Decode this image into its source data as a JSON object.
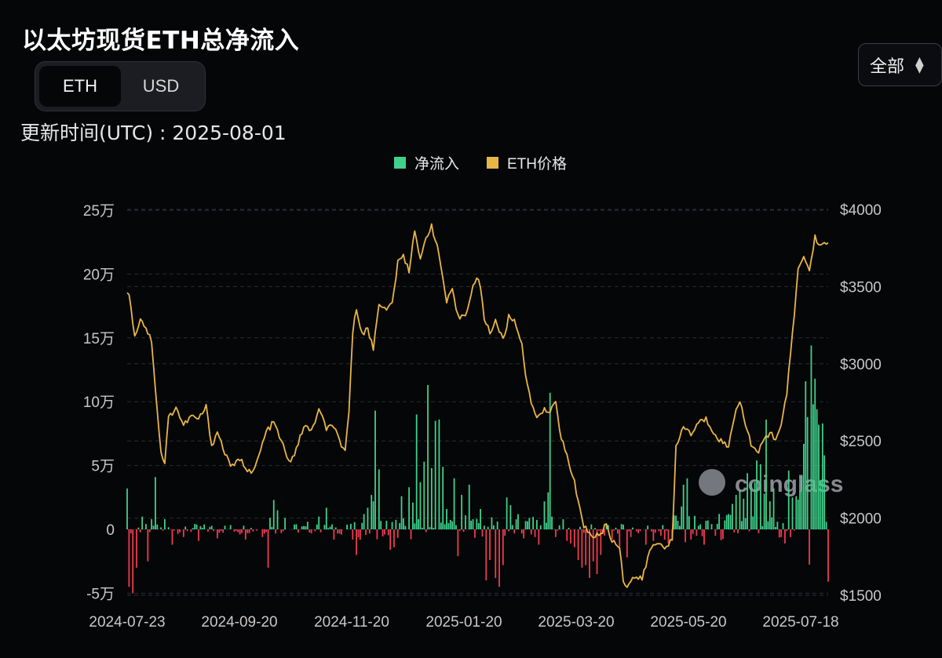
{
  "title": "以太坊现货ETH总净流入",
  "unit_toggle": {
    "options": [
      "ETH",
      "USD"
    ],
    "selected": "ETH"
  },
  "update_time": "更新时间(UTC) : 2025-08-01",
  "range_select": {
    "value": "全部",
    "icon": "chevron-up-down-icon"
  },
  "watermark": "coinglass",
  "colors": {
    "inflow": "#3fd18b",
    "outflow": "#ef3b4f",
    "price": "#e8b646",
    "background": "#050608"
  },
  "chart_data": {
    "type": "bar+line",
    "legend": [
      {
        "name": "净流入",
        "color": "#3fd18b"
      },
      {
        "name": "ETH价格",
        "color": "#e8b646"
      }
    ],
    "legend_position": "top-center",
    "grid": true,
    "x_tick_labels": [
      "2024-07-23",
      "2024-09-20",
      "2024-11-20",
      "2025-01-20",
      "2025-03-20",
      "2025-05-20",
      "2025-07-18"
    ],
    "y_left": {
      "min": -55000,
      "max": 250000,
      "ticks": [
        {
          "value": 250000,
          "label": "25万"
        },
        {
          "value": 200000,
          "label": "20万"
        },
        {
          "value": 150000,
          "label": "15万"
        },
        {
          "value": 100000,
          "label": "10万"
        },
        {
          "value": 50000,
          "label": "5万"
        },
        {
          "value": 0,
          "label": "0"
        },
        {
          "value": -50000,
          "label": "-5万"
        }
      ]
    },
    "y_right": {
      "min": 1480,
      "max": 4000,
      "ticks": [
        {
          "value": 4000,
          "label": "$4000"
        },
        {
          "value": 3500,
          "label": "$3500"
        },
        {
          "value": 3000,
          "label": "$3000"
        },
        {
          "value": 2500,
          "label": "$2500"
        },
        {
          "value": 2000,
          "label": "$2000"
        },
        {
          "value": 1500,
          "label": "$1500"
        }
      ]
    },
    "price_keypoints": [
      [
        0,
        3480
      ],
      [
        2,
        3380
      ],
      [
        4,
        3170
      ],
      [
        7,
        3300
      ],
      [
        10,
        3230
      ],
      [
        13,
        3150
      ],
      [
        16,
        2700
      ],
      [
        18,
        2420
      ],
      [
        20,
        2360
      ],
      [
        22,
        2650
      ],
      [
        26,
        2720
      ],
      [
        30,
        2600
      ],
      [
        34,
        2660
      ],
      [
        38,
        2640
      ],
      [
        42,
        2720
      ],
      [
        45,
        2470
      ],
      [
        48,
        2560
      ],
      [
        52,
        2420
      ],
      [
        56,
        2330
      ],
      [
        60,
        2380
      ],
      [
        64,
        2320
      ],
      [
        67,
        2290
      ],
      [
        70,
        2400
      ],
      [
        74,
        2560
      ],
      [
        78,
        2620
      ],
      [
        82,
        2500
      ],
      [
        86,
        2360
      ],
      [
        90,
        2440
      ],
      [
        94,
        2600
      ],
      [
        98,
        2560
      ],
      [
        102,
        2700
      ],
      [
        106,
        2580
      ],
      [
        110,
        2600
      ],
      [
        114,
        2450
      ],
      [
        116,
        2430
      ],
      [
        118,
        2700
      ],
      [
        120,
        3200
      ],
      [
        122,
        3360
      ],
      [
        125,
        3200
      ],
      [
        128,
        3220
      ],
      [
        131,
        3100
      ],
      [
        134,
        3400
      ],
      [
        138,
        3340
      ],
      [
        141,
        3400
      ],
      [
        144,
        3650
      ],
      [
        147,
        3700
      ],
      [
        150,
        3600
      ],
      [
        153,
        3880
      ],
      [
        156,
        3660
      ],
      [
        159,
        3820
      ],
      [
        162,
        3900
      ],
      [
        166,
        3700
      ],
      [
        170,
        3400
      ],
      [
        173,
        3470
      ],
      [
        176,
        3300
      ],
      [
        180,
        3320
      ],
      [
        184,
        3500
      ],
      [
        187,
        3560
      ],
      [
        190,
        3300
      ],
      [
        193,
        3200
      ],
      [
        196,
        3280
      ],
      [
        200,
        3150
      ],
      [
        203,
        3300
      ],
      [
        206,
        3280
      ],
      [
        210,
        3130
      ],
      [
        213,
        2850
      ],
      [
        216,
        2700
      ],
      [
        219,
        2650
      ],
      [
        222,
        2720
      ],
      [
        225,
        2680
      ],
      [
        228,
        2750
      ],
      [
        231,
        2520
      ],
      [
        234,
        2400
      ],
      [
        237,
        2280
      ],
      [
        240,
        2120
      ],
      [
        243,
        1950
      ],
      [
        246,
        1900
      ],
      [
        249,
        1880
      ],
      [
        252,
        1900
      ],
      [
        255,
        1960
      ],
      [
        258,
        1850
      ],
      [
        262,
        1820
      ],
      [
        264,
        1600
      ],
      [
        266,
        1560
      ],
      [
        270,
        1620
      ],
      [
        274,
        1600
      ],
      [
        278,
        1790
      ],
      [
        282,
        1840
      ],
      [
        286,
        1820
      ],
      [
        290,
        1850
      ],
      [
        292,
        2450
      ],
      [
        296,
        2600
      ],
      [
        300,
        2540
      ],
      [
        304,
        2620
      ],
      [
        308,
        2640
      ],
      [
        312,
        2560
      ],
      [
        316,
        2500
      ],
      [
        320,
        2460
      ],
      [
        324,
        2720
      ],
      [
        326,
        2760
      ],
      [
        330,
        2560
      ],
      [
        333,
        2450
      ],
      [
        336,
        2420
      ],
      [
        339,
        2520
      ],
      [
        342,
        2550
      ],
      [
        345,
        2520
      ],
      [
        348,
        2600
      ],
      [
        351,
        2800
      ],
      [
        354,
        3200
      ],
      [
        357,
        3600
      ],
      [
        360,
        3700
      ],
      [
        363,
        3600
      ],
      [
        366,
        3820
      ],
      [
        369,
        3770
      ],
      [
        372,
        3770
      ]
    ],
    "bar_spikes": [
      [
        0,
        32000
      ],
      [
        1,
        -45000
      ],
      [
        3,
        -50000
      ],
      [
        5,
        -30000
      ],
      [
        8,
        10000
      ],
      [
        11,
        -25000
      ],
      [
        13,
        8000
      ],
      [
        15,
        41000
      ],
      [
        20,
        8000
      ],
      [
        24,
        -12000
      ],
      [
        30,
        -6000
      ],
      [
        38,
        -9000
      ],
      [
        48,
        -7000
      ],
      [
        60,
        -4000
      ],
      [
        63,
        -8000
      ],
      [
        72,
        -6000
      ],
      [
        75,
        -30000
      ],
      [
        76,
        9000
      ],
      [
        78,
        23000
      ],
      [
        80,
        15000
      ],
      [
        84,
        9000
      ],
      [
        90,
        4000
      ],
      [
        96,
        6000
      ],
      [
        102,
        10000
      ],
      [
        106,
        17000
      ],
      [
        110,
        -8000
      ],
      [
        114,
        -4000
      ],
      [
        120,
        -8000
      ],
      [
        122,
        -20000
      ],
      [
        126,
        12000
      ],
      [
        128,
        17000
      ],
      [
        130,
        27000
      ],
      [
        131,
        22000
      ],
      [
        132,
        93000
      ],
      [
        134,
        47000
      ],
      [
        137,
        -4000
      ],
      [
        140,
        -16000
      ],
      [
        142,
        -14000
      ],
      [
        146,
        26000
      ],
      [
        150,
        33000
      ],
      [
        152,
        21000
      ],
      [
        154,
        90000
      ],
      [
        156,
        37000
      ],
      [
        158,
        53000
      ],
      [
        160,
        113000
      ],
      [
        162,
        48000
      ],
      [
        164,
        85000
      ],
      [
        166,
        86000
      ],
      [
        168,
        49000
      ],
      [
        170,
        16000
      ],
      [
        174,
        40000
      ],
      [
        176,
        -21000
      ],
      [
        178,
        27000
      ],
      [
        180,
        11000
      ],
      [
        182,
        35000
      ],
      [
        184,
        8000
      ],
      [
        188,
        16000
      ],
      [
        191,
        -40000
      ],
      [
        193,
        -24000
      ],
      [
        196,
        -38000
      ],
      [
        198,
        -45000
      ],
      [
        200,
        -28000
      ],
      [
        202,
        25000
      ],
      [
        204,
        19000
      ],
      [
        208,
        12000
      ],
      [
        211,
        -7000
      ],
      [
        214,
        9000
      ],
      [
        219,
        -12000
      ],
      [
        222,
        22000
      ],
      [
        224,
        29000
      ],
      [
        225,
        107000
      ],
      [
        226,
        10000
      ],
      [
        228,
        -6000
      ],
      [
        232,
        8000
      ],
      [
        234,
        -9000
      ],
      [
        236,
        -11000
      ],
      [
        238,
        -14000
      ],
      [
        240,
        -24000
      ],
      [
        242,
        -30000
      ],
      [
        244,
        -28000
      ],
      [
        246,
        -38000
      ],
      [
        248,
        -25000
      ],
      [
        250,
        -35000
      ],
      [
        252,
        -20000
      ],
      [
        254,
        -5000
      ],
      [
        258,
        -8000
      ],
      [
        262,
        -16000
      ],
      [
        266,
        -22000
      ],
      [
        268,
        -6000
      ],
      [
        272,
        -3000
      ],
      [
        276,
        -12000
      ],
      [
        280,
        -9000
      ],
      [
        284,
        -5000
      ],
      [
        286,
        -8000
      ],
      [
        288,
        -11000
      ],
      [
        290,
        -9000
      ],
      [
        291,
        11000
      ],
      [
        295,
        18000
      ],
      [
        296,
        35000
      ],
      [
        298,
        40000
      ],
      [
        300,
        -8000
      ],
      [
        303,
        -5000
      ],
      [
        305,
        4000
      ],
      [
        307,
        -12000
      ],
      [
        309,
        7000
      ],
      [
        313,
        -5000
      ],
      [
        318,
        7000
      ],
      [
        320,
        12000
      ],
      [
        322,
        20000
      ],
      [
        324,
        27000
      ],
      [
        326,
        31000
      ],
      [
        328,
        24000
      ],
      [
        330,
        44000
      ],
      [
        332,
        36000
      ],
      [
        334,
        37000
      ],
      [
        335,
        54000
      ],
      [
        337,
        51000
      ],
      [
        339,
        28000
      ],
      [
        340,
        86000
      ],
      [
        342,
        22000
      ],
      [
        344,
        32000
      ],
      [
        346,
        6000
      ],
      [
        348,
        -6000
      ],
      [
        350,
        -11000
      ],
      [
        352,
        46000
      ],
      [
        354,
        25000
      ],
      [
        356,
        26000
      ],
      [
        358,
        30000
      ],
      [
        359,
        42000
      ],
      [
        360,
        67000
      ],
      [
        361,
        116000
      ],
      [
        362,
        88000
      ],
      [
        364,
        144000
      ],
      [
        365,
        98000
      ],
      [
        366,
        118000
      ],
      [
        367,
        94000
      ],
      [
        368,
        82000
      ],
      [
        369,
        38000
      ],
      [
        370,
        83000
      ],
      [
        371,
        58000
      ],
      [
        372,
        6000
      ],
      [
        373,
        -41000
      ]
    ]
  }
}
